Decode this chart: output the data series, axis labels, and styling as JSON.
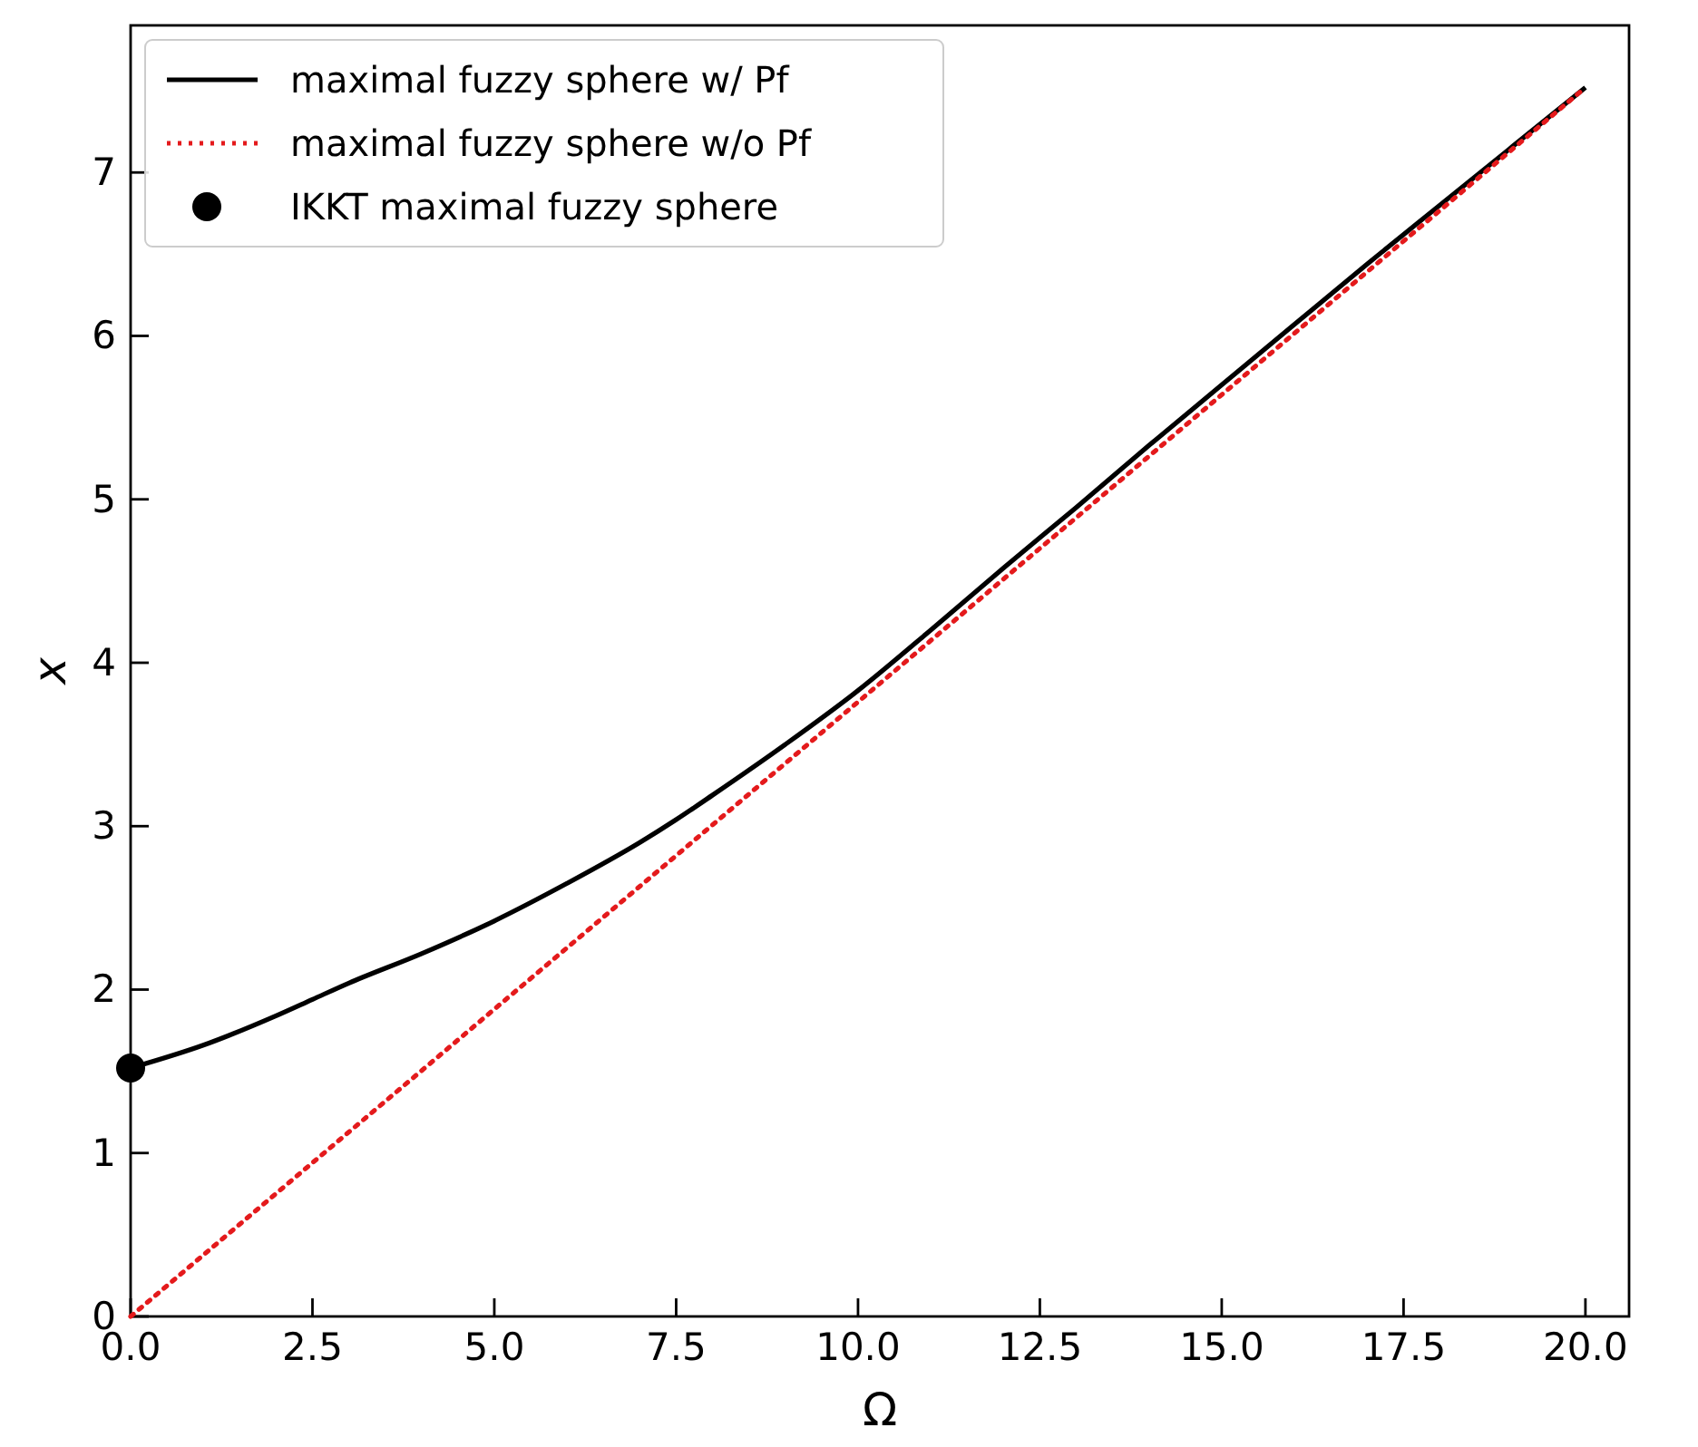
{
  "chart_data": {
    "type": "line",
    "xlabel": "Ω",
    "ylabel": "x",
    "xlim": [
      0,
      20.6
    ],
    "ylim": [
      0,
      7.9
    ],
    "xticks": [
      {
        "value": 0,
        "label": "0.0"
      },
      {
        "value": 2.5,
        "label": "2.5"
      },
      {
        "value": 5,
        "label": "5.0"
      },
      {
        "value": 7.5,
        "label": "7.5"
      },
      {
        "value": 10,
        "label": "10.0"
      },
      {
        "value": 12.5,
        "label": "12.5"
      },
      {
        "value": 15,
        "label": "15.0"
      },
      {
        "value": 17.5,
        "label": "17.5"
      },
      {
        "value": 20,
        "label": "20.0"
      }
    ],
    "yticks": [
      0,
      1,
      2,
      3,
      4,
      5,
      6,
      7
    ],
    "legend": "top left",
    "grid": false,
    "series": [
      {
        "name": "maximal fuzzy sphere w/ Pf",
        "color": "#000000",
        "line_style": "solid",
        "x": [
          0,
          1,
          2,
          2.5,
          3,
          4,
          5,
          6,
          7,
          7.5,
          8,
          9,
          10,
          11,
          12,
          13,
          14,
          15,
          16,
          17,
          18,
          19,
          20
        ],
        "values": [
          1.52,
          1.66,
          1.84,
          1.94,
          2.04,
          2.22,
          2.42,
          2.65,
          2.9,
          3.04,
          3.19,
          3.5,
          3.83,
          4.2,
          4.58,
          4.95,
          5.33,
          5.7,
          6.07,
          6.44,
          6.8,
          7.16,
          7.52
        ]
      },
      {
        "name": "maximal fuzzy sphere w/o Pf",
        "color": "#e41a1c",
        "line_style": "dotted",
        "x": [
          0,
          20
        ],
        "values": [
          0,
          7.52
        ]
      },
      {
        "name": "IKKT maximal fuzzy sphere",
        "type": "scatter",
        "marker": "circle",
        "color": "#000000",
        "x": [
          0
        ],
        "values": [
          1.52
        ]
      }
    ]
  }
}
